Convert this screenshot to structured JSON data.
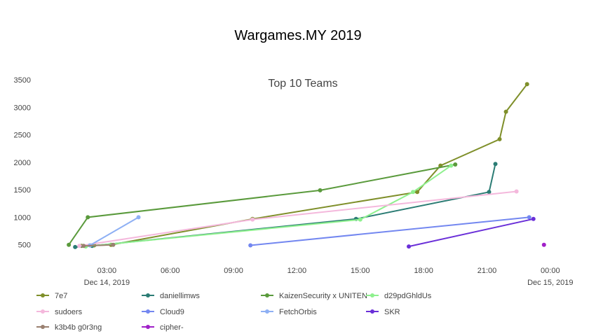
{
  "page": {
    "title": "Wargames.MY 2019"
  },
  "chart_data": {
    "type": "line",
    "title": "Top 10 Teams",
    "xlabel": "",
    "ylabel": "",
    "x_unit": "hours since Dec 14, 2019 00:00",
    "xlim": [
      0,
      25.5
    ],
    "ylim": [
      420,
      3500
    ],
    "y_ticks": [
      500,
      1000,
      1500,
      2000,
      2500,
      3000,
      3500
    ],
    "x_ticks": [
      {
        "value": 3,
        "label": "03:00",
        "sublabel": "Dec 14, 2019"
      },
      {
        "value": 6,
        "label": "06:00",
        "sublabel": ""
      },
      {
        "value": 9,
        "label": "09:00",
        "sublabel": ""
      },
      {
        "value": 12,
        "label": "12:00",
        "sublabel": ""
      },
      {
        "value": 15,
        "label": "15:00",
        "sublabel": ""
      },
      {
        "value": 18,
        "label": "18:00",
        "sublabel": ""
      },
      {
        "value": 21,
        "label": "21:00",
        "sublabel": ""
      },
      {
        "value": 24,
        "label": "00:00",
        "sublabel": "Dec 15, 2019"
      }
    ],
    "grid": false,
    "legend_position": "bottom",
    "series": [
      {
        "name": "7e7",
        "color": "#7f8f2a",
        "points": [
          [
            1.8,
            480
          ],
          [
            2.4,
            490
          ],
          [
            3.2,
            500
          ],
          [
            9.9,
            970
          ],
          [
            17.7,
            1460
          ],
          [
            18.8,
            1940
          ],
          [
            21.6,
            2420
          ],
          [
            21.9,
            2920
          ],
          [
            22.9,
            3420
          ]
        ]
      },
      {
        "name": "daniellimws",
        "color": "#2b7c74",
        "points": [
          [
            1.5,
            460
          ],
          [
            2.3,
            480
          ],
          [
            14.8,
            970
          ],
          [
            21.1,
            1460
          ],
          [
            21.4,
            1970
          ]
        ]
      },
      {
        "name": "KaizenSecurity x UNITEN",
        "color": "#5a9a3c",
        "points": [
          [
            1.2,
            500
          ],
          [
            2.1,
            1000
          ],
          [
            13.1,
            1490
          ],
          [
            19.5,
            1960
          ]
        ]
      },
      {
        "name": "d29pdGhldUs",
        "color": "#8ef08e",
        "points": [
          [
            2.0,
            470
          ],
          [
            15.0,
            960
          ],
          [
            17.5,
            1460
          ],
          [
            19.3,
            1940
          ]
        ]
      },
      {
        "name": "sudoers",
        "color": "#f4b8dc",
        "points": [
          [
            1.7,
            480
          ],
          [
            9.9,
            960
          ],
          [
            22.4,
            1470
          ]
        ]
      },
      {
        "name": "Cloud9",
        "color": "#7387f0",
        "points": [
          [
            9.8,
            490
          ],
          [
            23.0,
            1000
          ]
        ]
      },
      {
        "name": "FetchOrbis",
        "color": "#8eb0f4",
        "points": [
          [
            2.2,
            490
          ],
          [
            4.5,
            1000
          ]
        ]
      },
      {
        "name": "SKR",
        "color": "#6a2fd8",
        "points": [
          [
            17.3,
            470
          ],
          [
            23.2,
            970
          ]
        ]
      },
      {
        "name": "k3b4b g0r3ng",
        "color": "#9a8070",
        "points": [
          [
            1.9,
            480
          ],
          [
            3.3,
            500
          ]
        ]
      },
      {
        "name": "cipher-",
        "color": "#a020c8",
        "points": [
          [
            23.7,
            500
          ]
        ]
      }
    ]
  }
}
